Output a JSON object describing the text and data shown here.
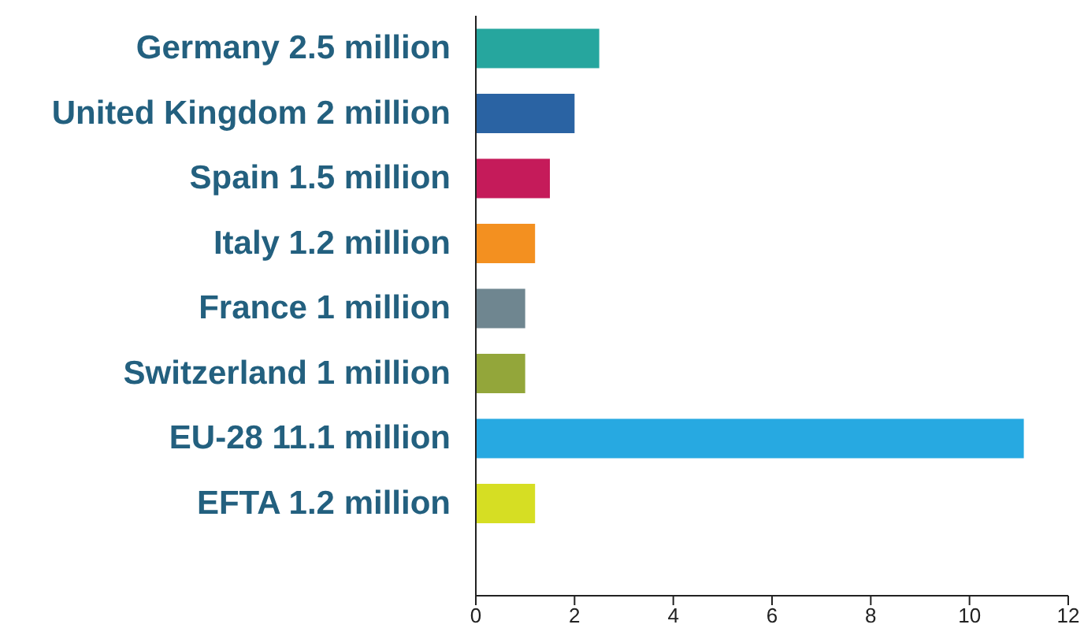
{
  "chart_data": {
    "type": "bar",
    "orientation": "horizontal",
    "categories": [
      "Germany 2.5 million",
      "United Kingdom 2 million",
      "Spain 1.5 million",
      "Italy 1.2 million",
      "France 1 million",
      "Switzerland 1 million",
      "EU-28 11.1 million",
      "EFTA 1.2 million"
    ],
    "values": [
      2.5,
      2,
      1.5,
      1.2,
      1,
      1,
      11.1,
      1.2
    ],
    "colors": [
      "#26a69e",
      "#2a63a3",
      "#c51b5a",
      "#f39020",
      "#6f8690",
      "#93a63a",
      "#27a9e1",
      "#d6de23"
    ],
    "xlim": [
      0,
      12
    ],
    "xticks": [
      0,
      2,
      4,
      6,
      8,
      10,
      12
    ],
    "grid": false,
    "legend": false
  }
}
